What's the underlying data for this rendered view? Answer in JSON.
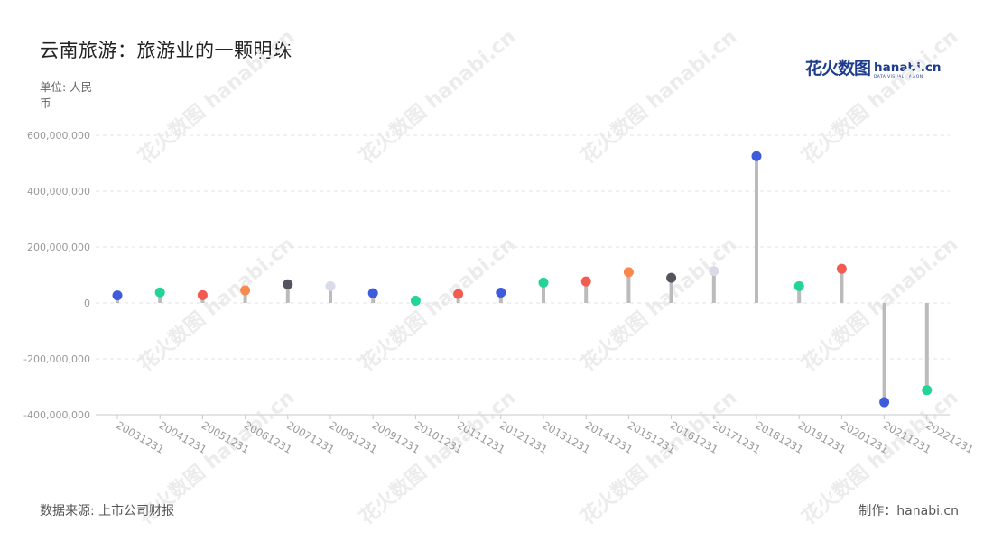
{
  "title": "云南旅游：旅游业的一颗明珠",
  "unit_label": "单位: 人民币",
  "source_label": "数据来源: 上市公司财报",
  "credit_label": "制作：hanabi.cn",
  "logo": {
    "cn": "花火数图",
    "en": "hanabi.cn",
    "sub": "DATA VISUALIZATION",
    "watermark": "花火数图 hanabi.cn"
  },
  "colors": {
    "stem": "#bbbbbb",
    "grid": "#e3e3e3",
    "axis": "#c8c8c8",
    "tick_text": "#999999",
    "brand": "#1f3d8c"
  },
  "chart_data": {
    "type": "lollipop",
    "title": "云南旅游：旅游业的一颗明珠",
    "ylabel": "单位: 人民币",
    "ylim": [
      -400000000,
      600000000
    ],
    "yticks": [
      "600,000,000",
      "400,000,000",
      "200,000,000",
      "0",
      "-200,000,000",
      "-400,000,000"
    ],
    "ytick_values": [
      600000000,
      400000000,
      200000000,
      0,
      -200000000,
      -400000000
    ],
    "grid": true,
    "categories": [
      "20031231",
      "20041231",
      "20051231",
      "20061231",
      "20071231",
      "20081231",
      "20091231",
      "20101231",
      "20111231",
      "20121231",
      "20131231",
      "20141231",
      "20151231",
      "20161231",
      "20171231",
      "20181231",
      "20191231",
      "20201231",
      "20211231",
      "20221231"
    ],
    "values": [
      27000000,
      38000000,
      28000000,
      45000000,
      67000000,
      60000000,
      35000000,
      8000000,
      32000000,
      37000000,
      73000000,
      77000000,
      110000000,
      90000000,
      114000000,
      525000000,
      60000000,
      122000000,
      -355000000,
      -312000000
    ],
    "point_colors": [
      "#3d5bdb",
      "#22d39a",
      "#f35a50",
      "#f7884e",
      "#55545e",
      "#d9dbe8",
      "#3d5bdb",
      "#22d39a",
      "#f35a50",
      "#3d5bdb",
      "#22d39a",
      "#f35a50",
      "#f7884e",
      "#55545e",
      "#d9dbe8",
      "#3d5bdb",
      "#22d39a",
      "#f35a50",
      "#3d5bdb",
      "#22d39a"
    ]
  }
}
